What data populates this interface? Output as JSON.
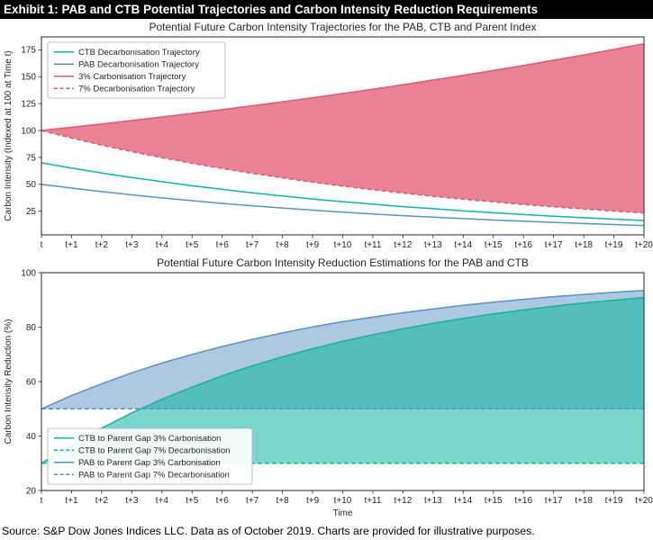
{
  "header": {
    "title": "Exhibit 1: PAB and CTB Potential Trajectories and Carbon Intensity Reduction Requirements"
  },
  "footer": {
    "text": "Source: S&P Dow Jones Indices LLC. Data as of October 2019. Charts are provided for illustrative purposes."
  },
  "colors": {
    "teal": "#0fb5a1",
    "blue": "#5b92c4",
    "pink": "#e25870"
  },
  "chart_data": [
    {
      "type": "area",
      "title": "Potential Future Carbon Intensity Trajectories for the PAB, CTB and Parent Index",
      "ylabel": "Carbon Intensity (Indexed at 100 at Time t)",
      "xlabel": "",
      "x_tick_labels": [
        "t",
        "t+1",
        "t+2",
        "t+3",
        "t+4",
        "t+5",
        "t+6",
        "t+7",
        "t+8",
        "t+9",
        "t+10",
        "t+11",
        "t+12",
        "t+13",
        "t+14",
        "t+15",
        "t+16",
        "t+17",
        "t+18",
        "t+19",
        "t+20"
      ],
      "xlim": [
        0,
        20
      ],
      "ylim": [
        3,
        187
      ],
      "yticks": [
        25,
        50,
        75,
        100,
        125,
        150,
        175
      ],
      "legend": "top-left",
      "grid": false,
      "series": [
        {
          "name": "CTB Decarbonisation Trajectory",
          "color": "teal",
          "dash": false,
          "values": [
            70,
            65.1,
            60.5,
            56.3,
            52.4,
            48.7,
            45.3,
            42.1,
            39.2,
            36.4,
            33.9,
            31.5,
            29.3,
            27.3,
            25.3,
            23.6,
            21.9,
            20.4,
            19.0,
            17.6,
            16.4
          ]
        },
        {
          "name": "PAB Decarbonisation Trajectory",
          "color": "blue",
          "dash": false,
          "values": [
            50,
            46.5,
            43.2,
            40.2,
            37.4,
            34.8,
            32.3,
            30.1,
            28.0,
            26.0,
            24.2,
            22.5,
            20.9,
            19.5,
            18.1,
            16.8,
            15.7,
            14.6,
            13.5,
            12.6,
            11.7
          ]
        },
        {
          "name": "3% Carbonisation Trajectory",
          "color": "pink",
          "dash": false,
          "values": [
            100,
            103,
            106.1,
            109.3,
            112.6,
            115.9,
            119.4,
            123.0,
            126.7,
            130.5,
            134.4,
            138.4,
            142.6,
            146.9,
            151.3,
            155.8,
            160.5,
            165.3,
            170.2,
            175.4,
            180.6
          ]
        },
        {
          "name": "7% Decarbonisation Trajectory",
          "color": "pink",
          "dash": true,
          "values": [
            100,
            93,
            86.5,
            80.4,
            74.8,
            69.6,
            64.7,
            60.2,
            56.0,
            52.0,
            48.4,
            45.0,
            41.9,
            38.9,
            36.2,
            33.7,
            31.3,
            29.1,
            27.1,
            25.2,
            23.4
          ]
        }
      ],
      "fills": [
        {
          "upper_series": 2,
          "lower_series": 3,
          "color": "pink",
          "alpha": 0.75
        }
      ]
    },
    {
      "type": "area",
      "title": "Potential Future Carbon Intensity Reduction Estimations for the PAB and CTB",
      "ylabel": "Carbon Intensity Reduction (%)",
      "xlabel": "Time",
      "x_tick_labels": [
        "t",
        "t+1",
        "t+2",
        "t+3",
        "t+4",
        "t+5",
        "t+6",
        "t+7",
        "t+8",
        "t+9",
        "t+10",
        "t+11",
        "t+12",
        "t+13",
        "t+14",
        "t+15",
        "t+16",
        "t+17",
        "t+18",
        "t+19",
        "t+20"
      ],
      "xlim": [
        0,
        20
      ],
      "ylim": [
        20,
        100
      ],
      "yticks": [
        20,
        40,
        60,
        80,
        100
      ],
      "legend": "bottom-left",
      "grid": false,
      "series": [
        {
          "name": "CTB to Parent Gap 3% Carbonisation",
          "color": "teal",
          "dash": false,
          "values": [
            30,
            36.8,
            42.9,
            48.5,
            53.5,
            58.0,
            62.1,
            65.8,
            69.1,
            72.1,
            74.8,
            77.2,
            79.4,
            81.4,
            83.2,
            84.9,
            86.3,
            87.7,
            88.9,
            89.9,
            90.9
          ]
        },
        {
          "name": "CTB to Parent Gap 7% Decarbonisation",
          "color": "teal",
          "dash": true,
          "const": 30
        },
        {
          "name": "PAB to Parent Gap 3% Carbonisation",
          "color": "blue",
          "dash": false,
          "values": [
            50,
            54.9,
            59.2,
            63.2,
            66.8,
            70.0,
            72.9,
            75.5,
            77.9,
            80.1,
            82.0,
            83.7,
            85.3,
            86.7,
            88.0,
            89.2,
            90.2,
            91.2,
            92.0,
            92.8,
            93.5
          ]
        },
        {
          "name": "PAB to Parent Gap 7% Decarbonisation",
          "color": "blue",
          "dash": true,
          "const": 50
        }
      ],
      "fills": [
        {
          "upper_series": 2,
          "lower_series": 3,
          "color": "blue",
          "alpha": 0.5
        },
        {
          "upper_series": 0,
          "lower_series": 1,
          "color": "teal",
          "alpha": 0.55
        }
      ]
    }
  ]
}
